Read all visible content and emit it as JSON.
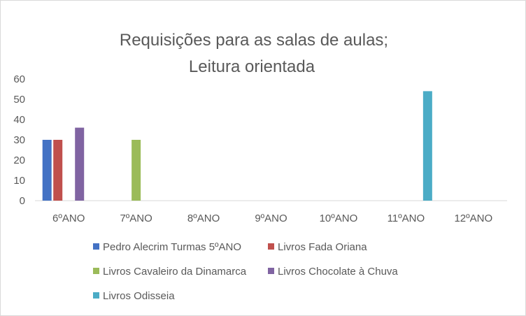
{
  "chart_data": {
    "type": "bar",
    "title_lines": [
      "Requisições para as salas de aulas;",
      "Leitura orientada"
    ],
    "categories": [
      "6ºANO",
      "7ºANO",
      "8ºANO",
      "9ºANO",
      "10ºANO",
      "11ºANO",
      "12ºANO"
    ],
    "ylim": [
      0,
      60
    ],
    "yticks": [
      0,
      10,
      20,
      30,
      40,
      50,
      60
    ],
    "grid": false,
    "legend_position": "bottom",
    "series": [
      {
        "name": "Pedro Alecrim Turmas 5ºANO",
        "color": "#4472c4",
        "values": [
          30,
          0,
          0,
          0,
          0,
          0,
          0
        ]
      },
      {
        "name": "Livros Fada Oriana",
        "color": "#c0504d",
        "values": [
          30,
          0,
          0,
          0,
          0,
          0,
          0
        ]
      },
      {
        "name": "Livros Cavaleiro da Dinamarca",
        "color": "#9bbb59",
        "values": [
          0,
          30,
          0,
          0,
          0,
          0,
          0
        ]
      },
      {
        "name": "Livros Chocolate à Chuva",
        "color": "#8064a2",
        "values": [
          36,
          0,
          0,
          0,
          0,
          0,
          0
        ]
      },
      {
        "name": "Livros Odisseia",
        "color": "#4bacc6",
        "values": [
          0,
          0,
          0,
          0,
          0,
          54,
          0
        ]
      }
    ]
  }
}
